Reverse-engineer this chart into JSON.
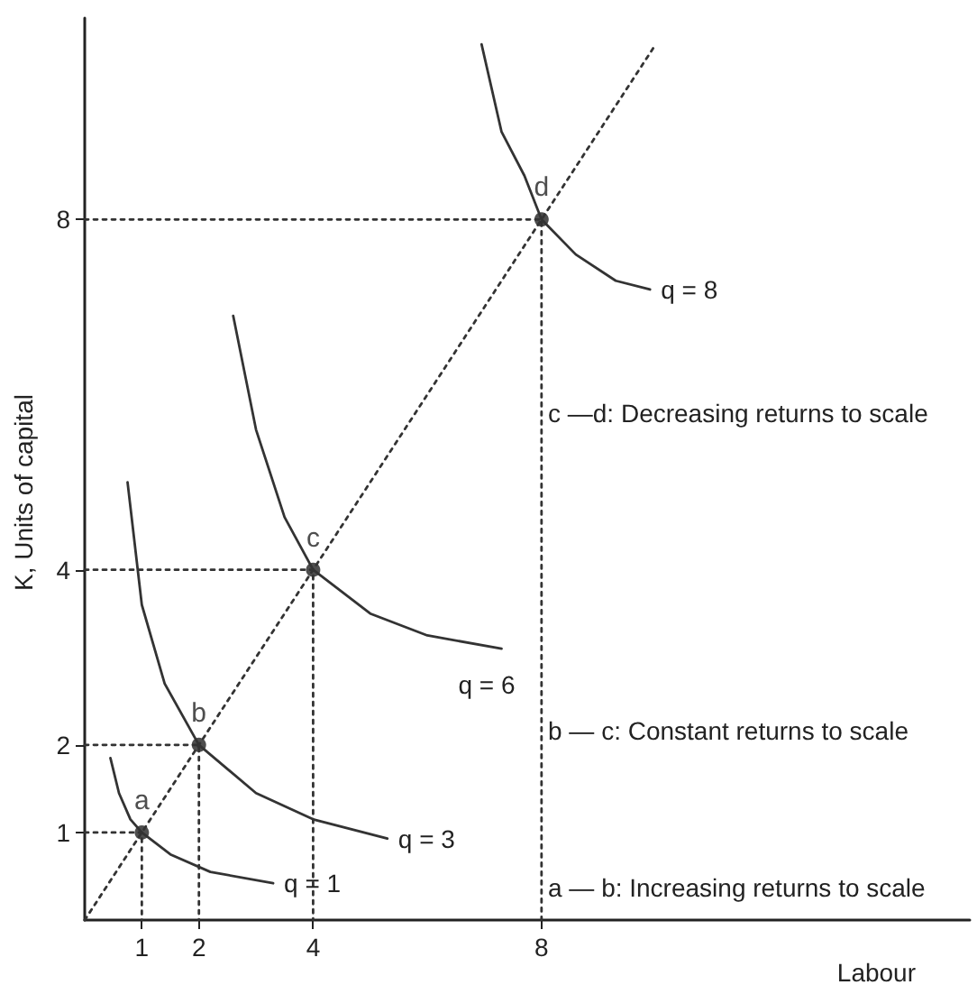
{
  "chart_data": {
    "type": "line",
    "xlabel": "Labour",
    "ylabel": "K, Units of capital",
    "xlim": [
      0,
      15.5
    ],
    "ylim": [
      0,
      10.3
    ],
    "xticks": [
      1,
      2,
      4,
      8
    ],
    "yticks": [
      1,
      2,
      4,
      8
    ],
    "grid": false,
    "series": [
      {
        "name": "q = 1",
        "color": "#333333",
        "line_style": "solid",
        "marker": "none",
        "x": [
          0.45,
          0.6,
          0.8,
          1,
          1.5,
          2.2,
          3.3
        ],
        "values": [
          1.85,
          1.45,
          1.15,
          1,
          0.75,
          0.55,
          0.42
        ]
      },
      {
        "name": "q = 3",
        "color": "#333333",
        "line_style": "solid",
        "marker": "none",
        "x": [
          0.75,
          1,
          1.4,
          2,
          3,
          4,
          5.3
        ],
        "values": [
          5,
          3.6,
          2.7,
          2,
          1.45,
          1.15,
          0.93
        ]
      },
      {
        "name": "q = 6",
        "color": "#333333",
        "line_style": "solid",
        "marker": "none",
        "x": [
          2.6,
          3,
          3.5,
          4,
          5,
          6,
          7.3
        ],
        "values": [
          6.9,
          5.6,
          4.6,
          4,
          3.5,
          3.25,
          3.1
        ]
      },
      {
        "name": "q = 8",
        "color": "#333333",
        "line_style": "solid",
        "marker": "none",
        "x": [
          6.95,
          7.3,
          7.7,
          8,
          8.6,
          9.3,
          9.9
        ],
        "values": [
          10,
          9,
          8.5,
          8,
          7.6,
          7.3,
          7.2
        ]
      },
      {
        "color": "#333333",
        "line_style": "dotted",
        "marker": "none",
        "x": [
          0,
          10
        ],
        "values": [
          0,
          10
        ]
      },
      {
        "color": "#333333",
        "line_style": "dotted",
        "marker": "none",
        "x": [
          0,
          1,
          1
        ],
        "values": [
          1,
          1,
          0
        ]
      },
      {
        "color": "#333333",
        "line_style": "dotted",
        "marker": "none",
        "x": [
          0,
          2,
          2
        ],
        "values": [
          2,
          2,
          0
        ]
      },
      {
        "color": "#333333",
        "line_style": "dotted",
        "marker": "none",
        "x": [
          0,
          4,
          4
        ],
        "values": [
          4,
          4,
          0
        ]
      },
      {
        "color": "#333333",
        "line_style": "dotted",
        "marker": "none",
        "x": [
          0,
          8,
          8
        ],
        "values": [
          8,
          8,
          0
        ]
      },
      {
        "type": "scatter",
        "color": "#222222",
        "marker": "circle",
        "x": [
          1,
          2,
          4,
          8
        ],
        "values": [
          1,
          2,
          4,
          8
        ],
        "value_labels": [
          "a",
          "b",
          "c",
          "d"
        ]
      }
    ],
    "annotations": [
      "c —d: Decreasing returns to scale",
      "b — c: Constant returns to scale",
      "a — b: Increasing returns to scale"
    ]
  }
}
